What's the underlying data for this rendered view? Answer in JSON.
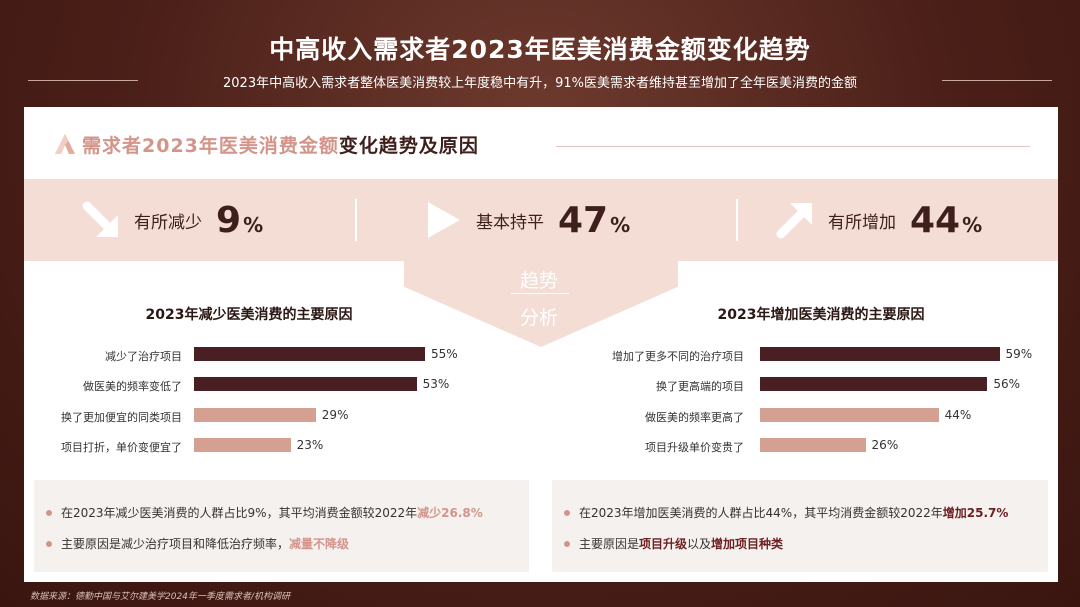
{
  "header": {
    "title": "中高收入需求者2023年医美消费金额变化趋势",
    "subtitle": "2023年中高收入需求者整体医美消费较上年度稳中有升，91%医美需求者维持甚至增加了全年医美消费的金额"
  },
  "section": {
    "title_light": "需求者2023年医美消费金额",
    "title_dark": "变化趋势及原因"
  },
  "stats": {
    "decrease": {
      "label": "有所减少",
      "value": "9",
      "unit": "%"
    },
    "flat": {
      "label": "基本持平",
      "value": "47",
      "unit": "%"
    },
    "increase": {
      "label": "有所增加",
      "value": "44",
      "unit": "%"
    }
  },
  "funnel": {
    "top": "趋势",
    "bottom": "分析"
  },
  "colors": {
    "dark_bar": "#4a1f24",
    "light_bar": "#d3a092",
    "accent": "#d3958a"
  },
  "icons": {
    "decrease": "arrow-down-right-icon",
    "flat": "play-right-icon",
    "increase": "arrow-up-right-icon"
  },
  "chart_data": [
    {
      "type": "bar",
      "orientation": "horizontal",
      "title": "2023年减少医美消费的主要原因",
      "categories": [
        "减少了治疗项目",
        "做医美的频率变低了",
        "换了更加便宜的同类项目",
        "项目打折，单价变便宜了"
      ],
      "values": [
        55,
        53,
        29,
        23
      ],
      "value_labels": [
        "55%",
        "53%",
        "29%",
        "23%"
      ],
      "highlight": [
        true,
        true,
        false,
        false
      ]
    },
    {
      "type": "bar",
      "orientation": "horizontal",
      "title": "2023年增加医美消费的主要原因",
      "categories": [
        "增加了更多不同的治疗项目",
        "换了更高端的项目",
        "做医美的频率更高了",
        "项目升级单价变贵了"
      ],
      "values": [
        59,
        56,
        44,
        26
      ],
      "value_labels": [
        "59%",
        "56%",
        "44%",
        "26%"
      ],
      "highlight": [
        true,
        true,
        false,
        false
      ]
    }
  ],
  "notes": {
    "left": {
      "line1_text": "在2023年减少医美消费的人群占比9%，其平均消费金额较2022年",
      "line1_hl": "减少26.8%",
      "line2_text": "主要原因是减少治疗项目和降低治疗频率，",
      "line2_hl": "减量不降级"
    },
    "right": {
      "line1_text": "在2023年增加医美消费的人群占比44%，其平均消费金额较2022年",
      "line1_hl": "增加25.7%",
      "line2_a": "主要原因是",
      "line2_hl1": "项目升级",
      "line2_b": "以及",
      "line2_hl2": "增加项目种类"
    }
  },
  "source": "数据来源：德勤中国与艾尔建美学2024年一季度需求者/机构调研"
}
